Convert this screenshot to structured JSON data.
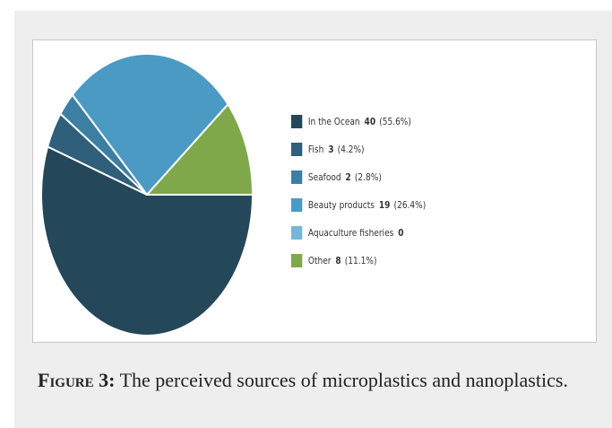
{
  "chart_data": {
    "type": "pie",
    "slices": [
      {
        "label": "In the Ocean",
        "count": "40",
        "percent": "(55.6%)",
        "value": 55.6,
        "color": "#25475a"
      },
      {
        "label": "Fish",
        "count": "3",
        "percent": "(4.2%)",
        "value": 4.2,
        "color": "#2f5f7a"
      },
      {
        "label": "Seafood",
        "count": "2",
        "percent": "(2.8%)",
        "value": 2.8,
        "color": "#3c7fa3"
      },
      {
        "label": "Beauty products",
        "count": "19",
        "percent": "(26.4%)",
        "value": 26.4,
        "color": "#4b9ac3"
      },
      {
        "label": "Aquaculture fisheries",
        "count": "0",
        "percent": "",
        "value": 0,
        "color": "#79b5d9"
      },
      {
        "label": "Other",
        "count": "8",
        "percent": "(11.1%)",
        "value": 11.1,
        "color": "#7fa84a"
      }
    ],
    "legend_position": "right"
  },
  "caption": {
    "label": "Figure 3:",
    "text": "The perceived sources of microplastics and nanoplastics."
  }
}
